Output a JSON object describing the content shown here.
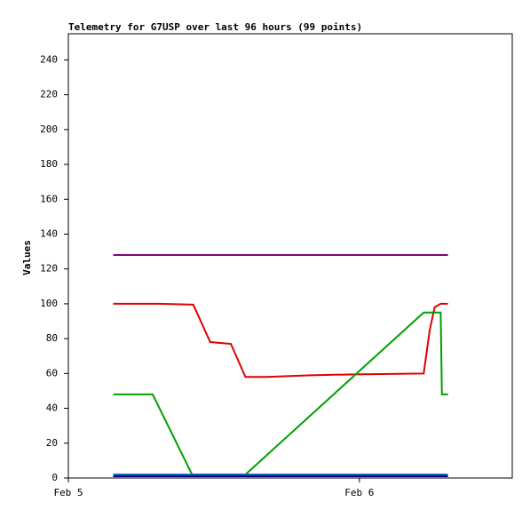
{
  "chart_data": {
    "type": "line",
    "title": "Telemetry for G7USP over last 96 hours (99 points)",
    "y_label": "Values",
    "xlim": [
      0,
      36.6
    ],
    "xticks": [
      {
        "value": 0,
        "label": "Feb 5"
      },
      {
        "value": 24,
        "label": "Feb 6"
      }
    ],
    "ylim": [
      0,
      255
    ],
    "yticks": [
      0,
      20,
      40,
      60,
      80,
      100,
      120,
      140,
      160,
      180,
      200,
      220,
      240
    ],
    "series": [
      {
        "color": "#800080",
        "x": [
          3.7,
          31.3
        ],
        "values": [
          128,
          128
        ]
      },
      {
        "color": "#e00000",
        "x": [
          3.7,
          7.5,
          10.3,
          11.7,
          13.4,
          14.6,
          16.3,
          20,
          23.6,
          29.3,
          29.8,
          30.2,
          30.7,
          31.3
        ],
        "values": [
          100,
          100,
          99.5,
          78,
          77,
          58,
          58,
          59,
          59.5,
          60,
          85,
          98,
          100,
          100
        ]
      },
      {
        "color": "#00a000",
        "x": [
          3.7,
          6.95,
          10.2,
          14.6,
          29.3,
          30.7,
          30.8,
          31.3
        ],
        "values": [
          48,
          48,
          2,
          2,
          95,
          95,
          48,
          48
        ]
      },
      {
        "color": "#0060c0",
        "x": [
          3.7,
          31.3
        ],
        "values": [
          2,
          2
        ]
      },
      {
        "color": "#000080",
        "x": [
          3.7,
          31.3
        ],
        "values": [
          1,
          1
        ]
      }
    ]
  }
}
